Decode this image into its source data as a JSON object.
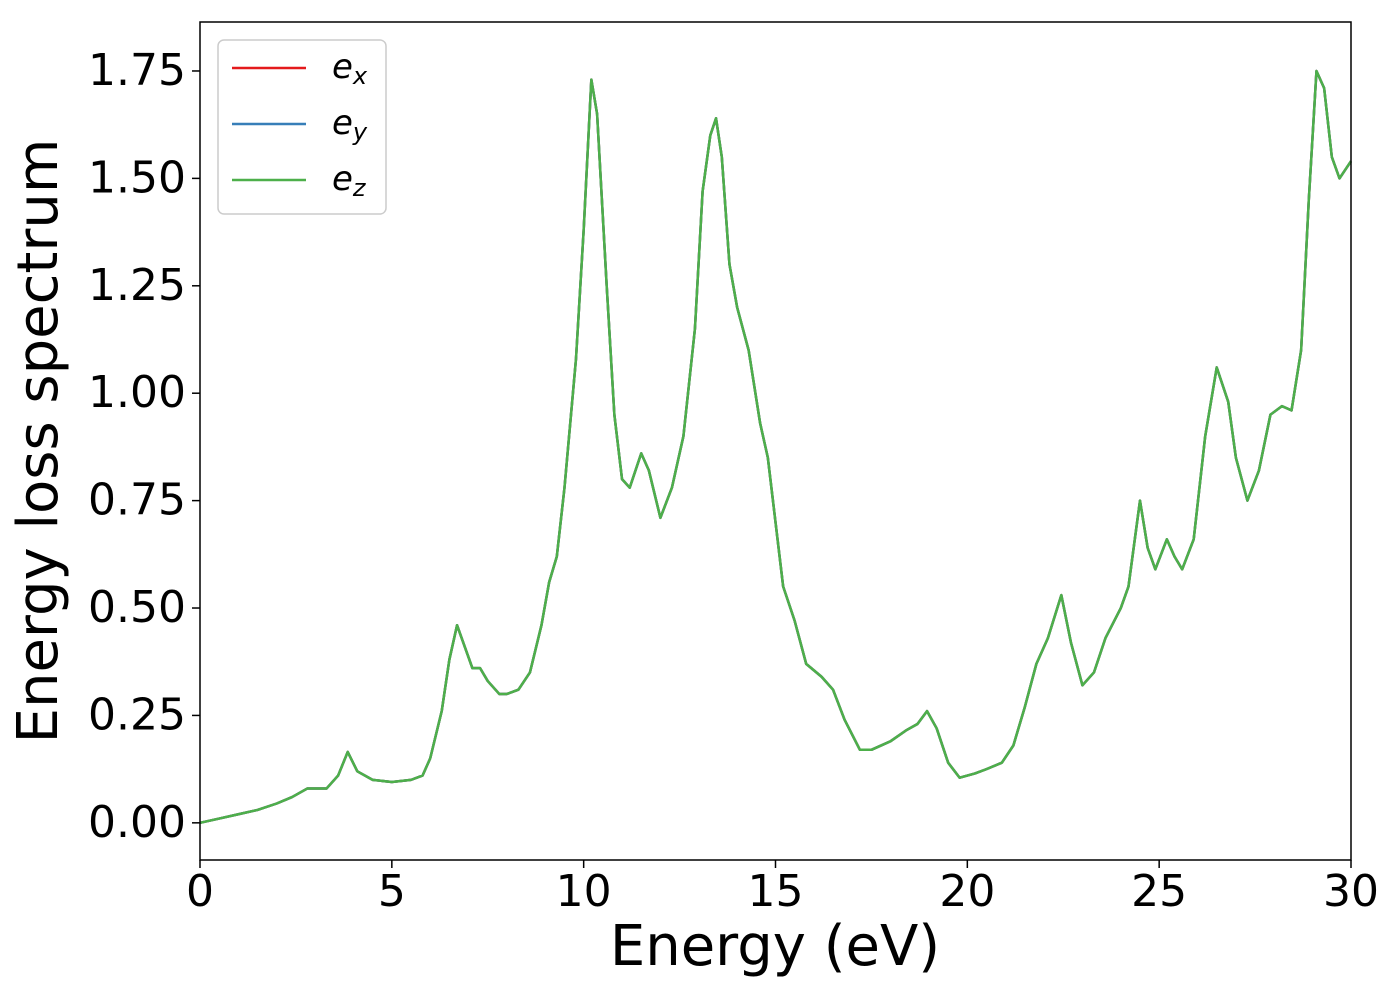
{
  "chart_data": {
    "type": "line",
    "xlabel": "Energy (eV)",
    "ylabel": "Energy loss spectrum",
    "xlim": [
      0,
      30
    ],
    "ylim": [
      -0.0865,
      1.864
    ],
    "xticks": [
      0,
      5,
      10,
      15,
      20,
      25,
      30
    ],
    "yticks": [
      {
        "value": 0,
        "label": "0.00"
      },
      {
        "value": 0.25,
        "label": "0.25"
      },
      {
        "value": 0.5,
        "label": "0.50"
      },
      {
        "value": 0.75,
        "label": "0.75"
      },
      {
        "value": 1,
        "label": "1.00"
      },
      {
        "value": 1.25,
        "label": "1.25"
      },
      {
        "value": 1.5,
        "label": "1.50"
      },
      {
        "value": 1.75,
        "label": "1.75"
      }
    ],
    "legend": "upper left",
    "x": [
      0,
      0.5,
      1,
      1.5,
      2,
      2.4,
      2.8,
      3.0,
      3.3,
      3.6,
      3.85,
      4.1,
      4.5,
      5,
      5.5,
      5.8,
      6.0,
      6.3,
      6.5,
      6.7,
      6.9,
      7.1,
      7.3,
      7.5,
      7.8,
      8.0,
      8.3,
      8.6,
      8.9,
      9.1,
      9.3,
      9.5,
      9.8,
      10.0,
      10.2,
      10.35,
      10.6,
      10.8,
      11.0,
      11.2,
      11.5,
      11.7,
      12.0,
      12.3,
      12.6,
      12.9,
      13.1,
      13.3,
      13.45,
      13.6,
      13.8,
      14.0,
      14.3,
      14.6,
      14.8,
      15.0,
      15.2,
      15.5,
      15.8,
      16.2,
      16.5,
      16.8,
      17.2,
      17.5,
      18.0,
      18.4,
      18.7,
      18.95,
      19.2,
      19.5,
      19.8,
      20.2,
      20.5,
      20.9,
      21.2,
      21.5,
      21.8,
      22.1,
      22.45,
      22.7,
      23.0,
      23.3,
      23.6,
      24.0,
      24.2,
      24.5,
      24.7,
      24.9,
      25.2,
      25.4,
      25.6,
      25.9,
      26.2,
      26.5,
      26.8,
      27.0,
      27.3,
      27.6,
      27.9,
      28.2,
      28.45,
      28.7,
      28.9,
      29.1,
      29.3,
      29.5,
      29.7,
      30.0
    ],
    "series": [
      {
        "name": "e_x",
        "color": "#e41a1c",
        "values": [
          0,
          0.01,
          0.02,
          0.03,
          0.045,
          0.06,
          0.08,
          0.08,
          0.08,
          0.11,
          0.165,
          0.12,
          0.1,
          0.095,
          0.1,
          0.11,
          0.15,
          0.26,
          0.38,
          0.46,
          0.41,
          0.36,
          0.36,
          0.33,
          0.3,
          0.3,
          0.31,
          0.35,
          0.46,
          0.56,
          0.62,
          0.78,
          1.08,
          1.38,
          1.73,
          1.65,
          1.25,
          0.95,
          0.8,
          0.78,
          0.86,
          0.82,
          0.71,
          0.78,
          0.9,
          1.15,
          1.47,
          1.6,
          1.64,
          1.55,
          1.3,
          1.2,
          1.1,
          0.93,
          0.85,
          0.7,
          0.55,
          0.47,
          0.37,
          0.34,
          0.31,
          0.24,
          0.17,
          0.17,
          0.19,
          0.215,
          0.23,
          0.26,
          0.22,
          0.14,
          0.105,
          0.115,
          0.125,
          0.14,
          0.18,
          0.27,
          0.37,
          0.43,
          0.53,
          0.42,
          0.32,
          0.35,
          0.43,
          0.5,
          0.55,
          0.75,
          0.64,
          0.59,
          0.66,
          0.62,
          0.59,
          0.66,
          0.9,
          1.06,
          0.98,
          0.85,
          0.75,
          0.82,
          0.95,
          0.97,
          0.96,
          1.1,
          1.45,
          1.75,
          1.71,
          1.55,
          1.5,
          1.54
        ]
      },
      {
        "name": "e_y",
        "color": "#377eb8",
        "values": [
          0,
          0.01,
          0.02,
          0.03,
          0.045,
          0.06,
          0.08,
          0.08,
          0.08,
          0.11,
          0.165,
          0.12,
          0.1,
          0.095,
          0.1,
          0.11,
          0.15,
          0.26,
          0.38,
          0.46,
          0.41,
          0.36,
          0.36,
          0.33,
          0.3,
          0.3,
          0.31,
          0.35,
          0.46,
          0.56,
          0.62,
          0.78,
          1.08,
          1.38,
          1.73,
          1.65,
          1.25,
          0.95,
          0.8,
          0.78,
          0.86,
          0.82,
          0.71,
          0.78,
          0.9,
          1.15,
          1.47,
          1.6,
          1.64,
          1.55,
          1.3,
          1.2,
          1.1,
          0.93,
          0.85,
          0.7,
          0.55,
          0.47,
          0.37,
          0.34,
          0.31,
          0.24,
          0.17,
          0.17,
          0.19,
          0.215,
          0.23,
          0.26,
          0.22,
          0.14,
          0.105,
          0.115,
          0.125,
          0.14,
          0.18,
          0.27,
          0.37,
          0.43,
          0.53,
          0.42,
          0.32,
          0.35,
          0.43,
          0.5,
          0.55,
          0.75,
          0.64,
          0.59,
          0.66,
          0.62,
          0.59,
          0.66,
          0.9,
          1.06,
          0.98,
          0.85,
          0.75,
          0.82,
          0.95,
          0.97,
          0.96,
          1.1,
          1.45,
          1.75,
          1.71,
          1.55,
          1.5,
          1.54
        ]
      },
      {
        "name": "e_z",
        "color": "#4daf4a",
        "values": [
          0,
          0.01,
          0.02,
          0.03,
          0.045,
          0.06,
          0.08,
          0.08,
          0.08,
          0.11,
          0.165,
          0.12,
          0.1,
          0.095,
          0.1,
          0.11,
          0.15,
          0.26,
          0.38,
          0.46,
          0.41,
          0.36,
          0.36,
          0.33,
          0.3,
          0.3,
          0.31,
          0.35,
          0.46,
          0.56,
          0.62,
          0.78,
          1.08,
          1.38,
          1.73,
          1.65,
          1.25,
          0.95,
          0.8,
          0.78,
          0.86,
          0.82,
          0.71,
          0.78,
          0.9,
          1.15,
          1.47,
          1.6,
          1.64,
          1.55,
          1.3,
          1.2,
          1.1,
          0.93,
          0.85,
          0.7,
          0.55,
          0.47,
          0.37,
          0.34,
          0.31,
          0.24,
          0.17,
          0.17,
          0.19,
          0.215,
          0.23,
          0.26,
          0.22,
          0.14,
          0.105,
          0.115,
          0.125,
          0.14,
          0.18,
          0.27,
          0.37,
          0.43,
          0.53,
          0.42,
          0.32,
          0.35,
          0.43,
          0.5,
          0.55,
          0.75,
          0.64,
          0.59,
          0.66,
          0.62,
          0.59,
          0.66,
          0.9,
          1.06,
          0.98,
          0.85,
          0.75,
          0.82,
          0.95,
          0.97,
          0.96,
          1.1,
          1.45,
          1.75,
          1.71,
          1.55,
          1.5,
          1.54
        ]
      }
    ]
  }
}
